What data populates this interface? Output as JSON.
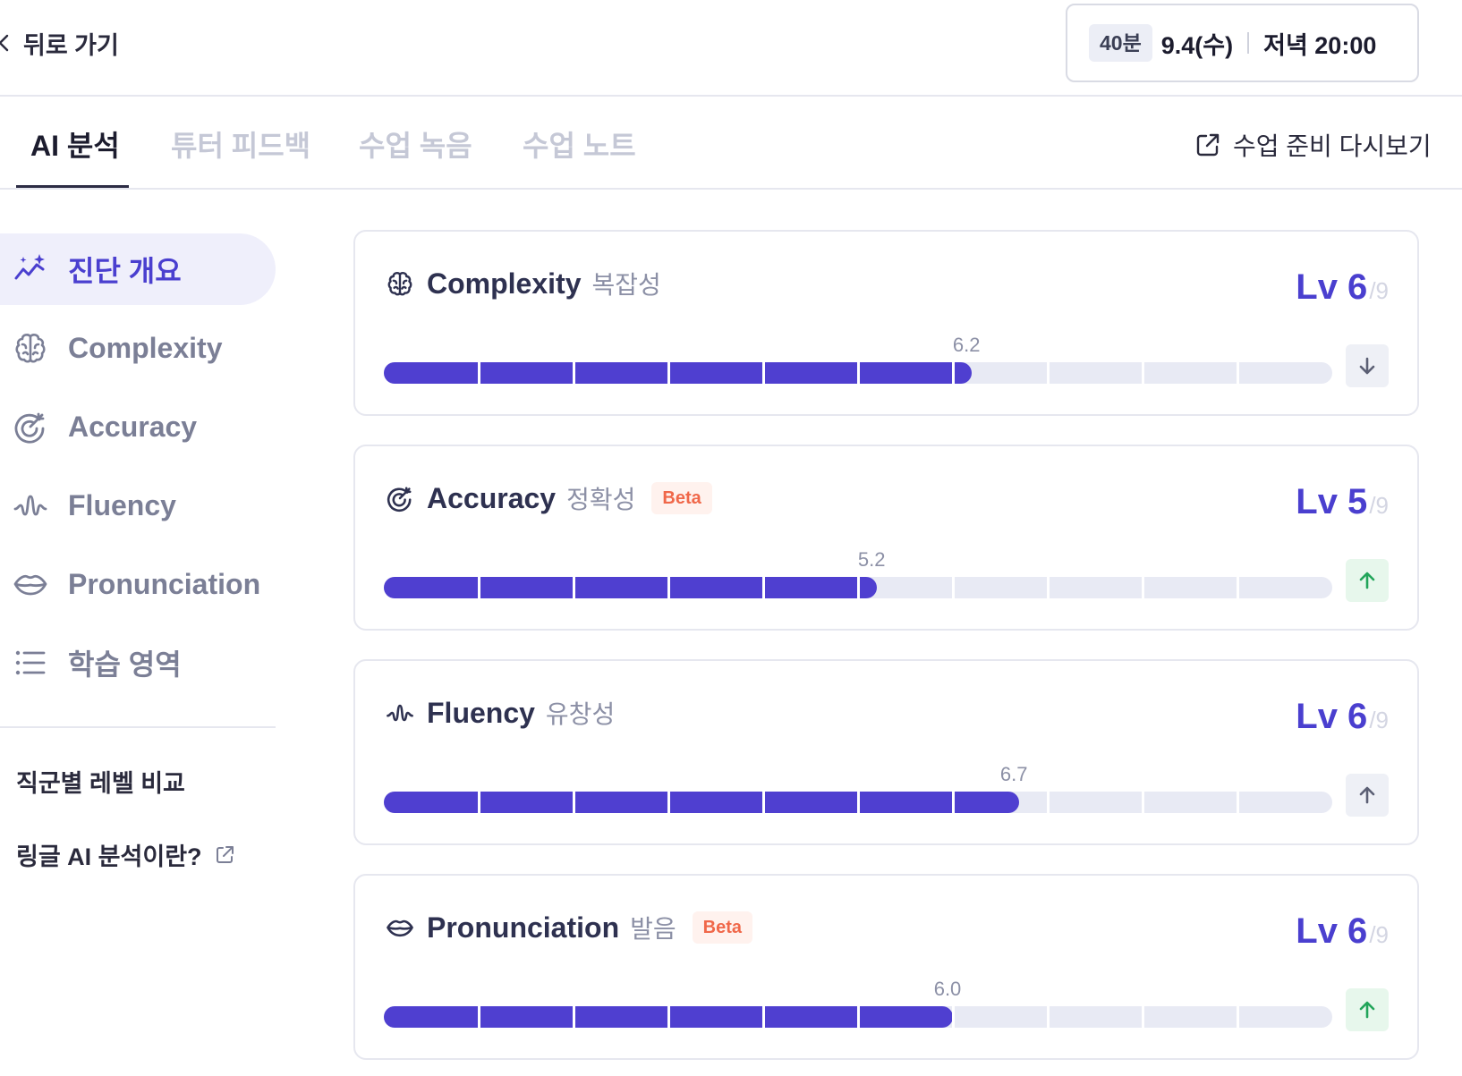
{
  "header": {
    "back_label": "뒤로 가기",
    "duration": "40분",
    "date": "9.4(수)",
    "time": "저녁 20:00"
  },
  "tabs": [
    {
      "label": "AI 분석",
      "active": true
    },
    {
      "label": "튜터 피드백",
      "active": false
    },
    {
      "label": "수업 녹음",
      "active": false
    },
    {
      "label": "수업 노트",
      "active": false
    }
  ],
  "prep_review_label": "수업 준비 다시보기",
  "sidebar": {
    "items": [
      {
        "label": "진단 개요",
        "icon": "sparkle-chart-icon",
        "active": true
      },
      {
        "label": "Complexity",
        "icon": "brain-icon",
        "active": false
      },
      {
        "label": "Accuracy",
        "icon": "target-icon",
        "active": false
      },
      {
        "label": "Fluency",
        "icon": "wave-icon",
        "active": false
      },
      {
        "label": "Pronunciation",
        "icon": "lips-icon",
        "active": false
      },
      {
        "label": "학습 영역",
        "icon": "list-icon",
        "active": false
      }
    ],
    "compare_link": "직군별 레벨 비교",
    "about_link": "링글 AI 분석이란?"
  },
  "cards": [
    {
      "title": "Complexity",
      "subtitle": "복잡성",
      "beta": "",
      "level": "Lv 6",
      "level_max": "/9",
      "score": 6.2,
      "score_label": "6.2",
      "trend": "down",
      "icon": "brain-icon"
    },
    {
      "title": "Accuracy",
      "subtitle": "정확성",
      "beta": "Beta",
      "level": "Lv 5",
      "level_max": "/9",
      "score": 5.2,
      "score_label": "5.2",
      "trend": "up",
      "icon": "target-icon"
    },
    {
      "title": "Fluency",
      "subtitle": "유창성",
      "beta": "",
      "level": "Lv 6",
      "level_max": "/9",
      "score": 6.7,
      "score_label": "6.7",
      "trend": "up-neutral",
      "icon": "wave-icon"
    },
    {
      "title": "Pronunciation",
      "subtitle": "발음",
      "beta": "Beta",
      "level": "Lv 6",
      "level_max": "/9",
      "score": 6.0,
      "score_label": "6.0",
      "trend": "up",
      "icon": "lips-icon"
    }
  ],
  "scale_max": 10,
  "colors": {
    "accent": "#4a3fcf",
    "bar_fill": "#4f3fd0",
    "bar_track": "#e8eaf4",
    "trend_up": "#22a55a",
    "trend_up_bg": "#e7f7ec",
    "trend_neutral": "#5b5f74",
    "trend_neutral_bg": "#eef0f6",
    "beta": "#f0684a"
  }
}
